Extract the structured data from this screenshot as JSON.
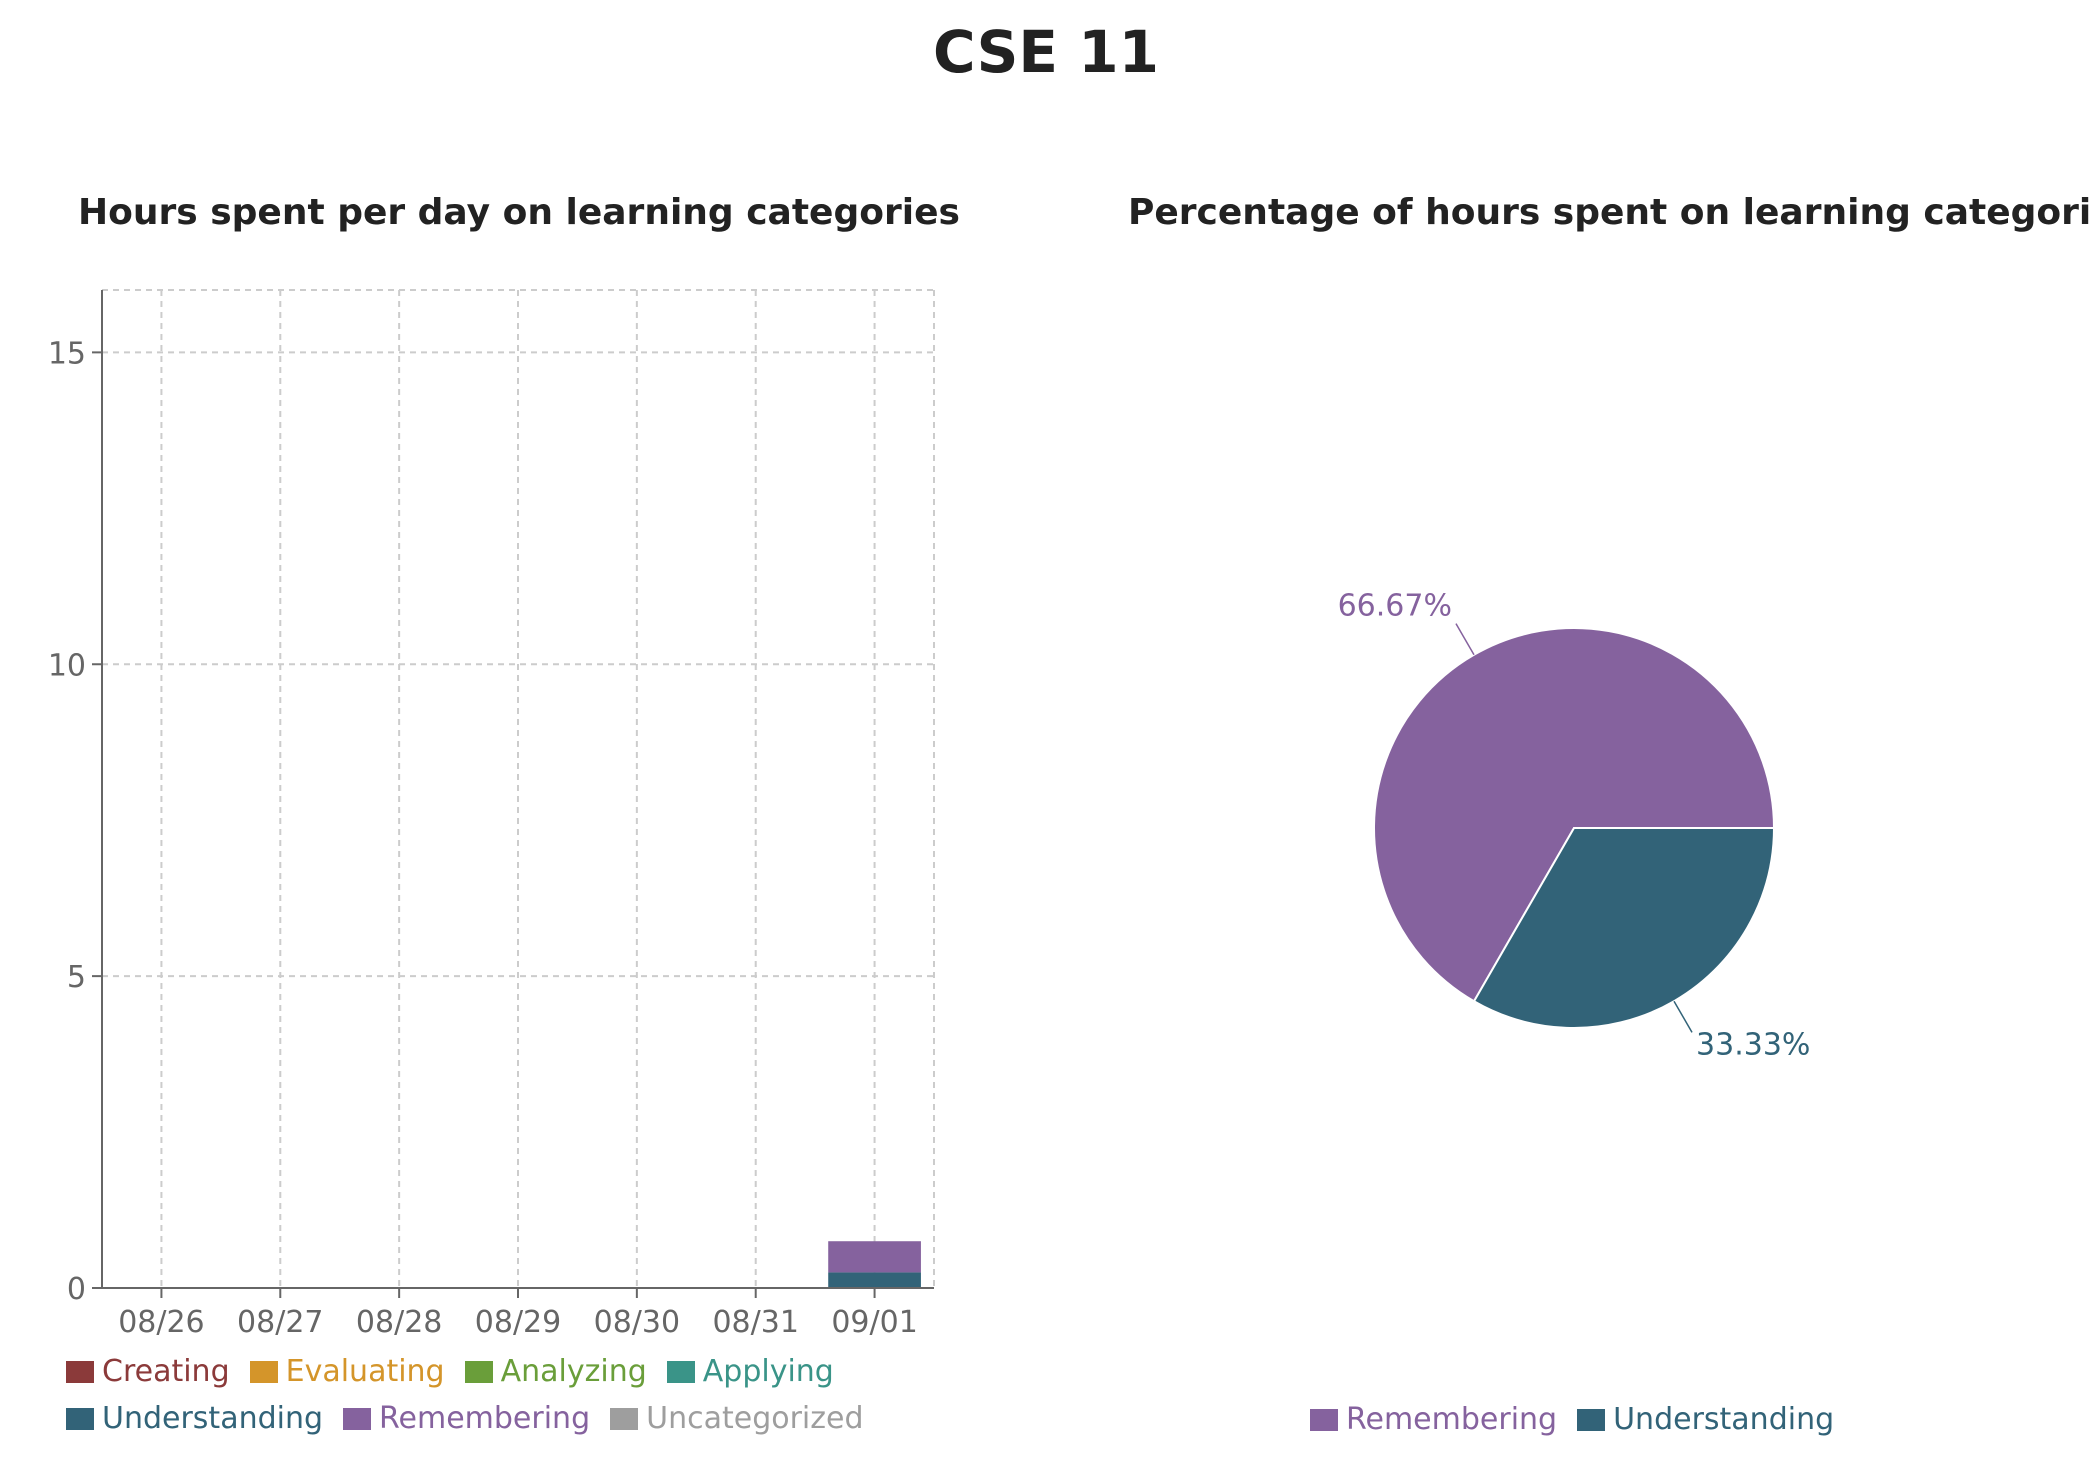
{
  "page": {
    "title": "CSE 11"
  },
  "chart_data": [
    {
      "type": "bar",
      "stacked": true,
      "title": "Hours spent per day on learning categories",
      "xlabel": "",
      "ylabel": "",
      "categories": [
        "08/26",
        "08/27",
        "08/28",
        "08/29",
        "08/30",
        "08/31",
        "09/01"
      ],
      "yticks": [
        0,
        5,
        10,
        15
      ],
      "ylim": [
        0,
        16
      ],
      "grid": true,
      "legend_position": "bottom-left",
      "series": [
        {
          "name": "Creating",
          "color": "#8b3a3a",
          "values": [
            0,
            0,
            0,
            0,
            0,
            0,
            0
          ]
        },
        {
          "name": "Evaluating",
          "color": "#d4952a",
          "values": [
            0,
            0,
            0,
            0,
            0,
            0,
            0
          ]
        },
        {
          "name": "Analyzing",
          "color": "#6a9e3a",
          "values": [
            0,
            0,
            0,
            0,
            0,
            0,
            0
          ]
        },
        {
          "name": "Applying",
          "color": "#3a9488",
          "values": [
            0,
            0,
            0,
            0,
            0,
            0,
            0
          ]
        },
        {
          "name": "Understanding",
          "color": "#326378",
          "values": [
            0,
            0,
            0,
            0,
            0,
            0,
            0.25
          ]
        },
        {
          "name": "Remembering",
          "color": "#85629e",
          "values": [
            0,
            0,
            0,
            0,
            0,
            0,
            0.5
          ]
        },
        {
          "name": "Uncategorized",
          "color": "#9e9e9e",
          "values": [
            0,
            0,
            0,
            0,
            0,
            0,
            0
          ]
        }
      ]
    },
    {
      "type": "pie",
      "title": "Percentage of hours spent on learning categories",
      "legend_position": "bottom-center",
      "slices": [
        {
          "name": "Remembering",
          "value": 66.67,
          "label": "66.67%",
          "color": "#85629e"
        },
        {
          "name": "Understanding",
          "value": 33.33,
          "label": "33.33%",
          "color": "#326378"
        }
      ]
    }
  ]
}
